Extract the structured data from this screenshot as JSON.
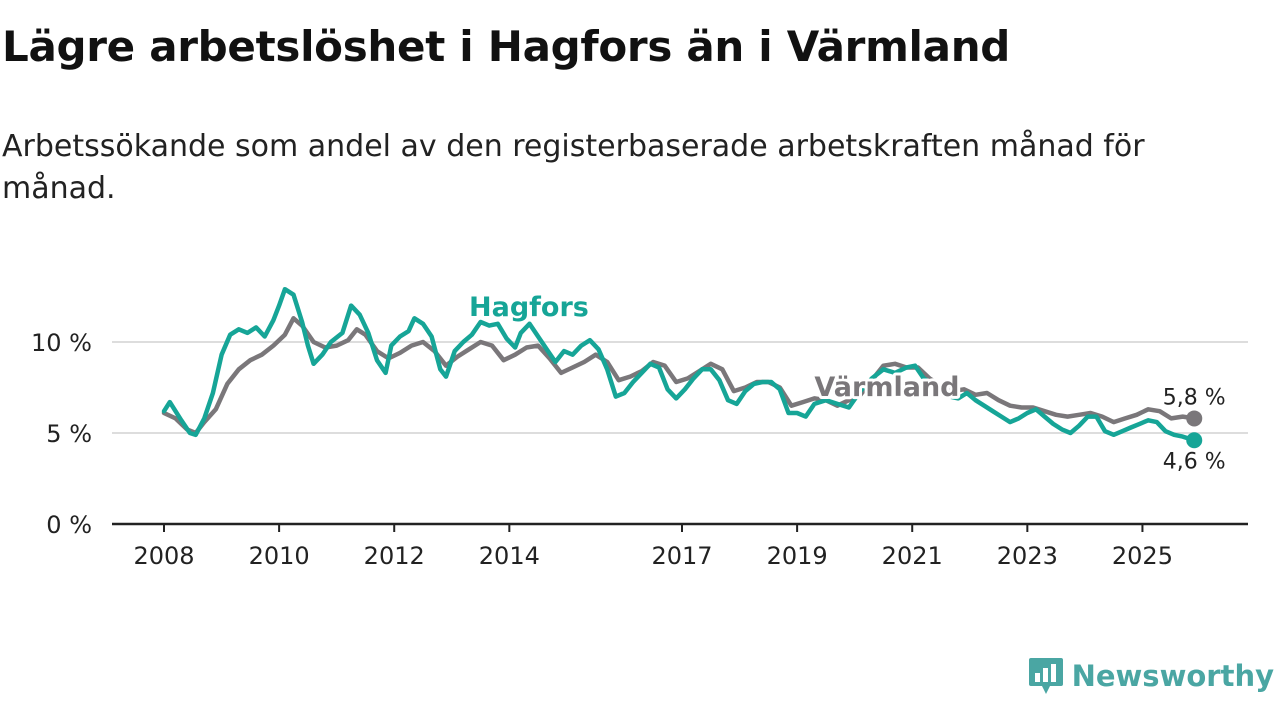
{
  "title": "Lägre arbetslöshet i Hagfors än i Värmland",
  "subtitle": "Arbetssökande som andel av den registerbaserade arbetskraften månad för månad.",
  "brand": {
    "name": "Newsworthy",
    "icon": "newsworthy-logo-icon",
    "color": "#4aa6a3"
  },
  "chart_data": {
    "type": "line",
    "title": "Lägre arbetslöshet i Hagfors än i Värmland",
    "xlabel": "",
    "ylabel": "",
    "xlim": [
      2008.0,
      2026.0
    ],
    "ylim": [
      0,
      12
    ],
    "grid": true,
    "x_ticks": [
      2008,
      2010,
      2012,
      2014,
      2017,
      2019,
      2021,
      2023,
      2025
    ],
    "x_tick_labels": [
      "2008",
      "2010",
      "2012",
      "2014",
      "2017",
      "2019",
      "2021",
      "2023",
      "2025"
    ],
    "y_ticks": [
      0,
      5,
      10
    ],
    "y_tick_labels": [
      "0 %",
      "5 %",
      "10 %"
    ],
    "series": [
      {
        "name": "Värmland",
        "label": "Värmland",
        "color": "#7a777a",
        "end_label": "5,8 %",
        "points": [
          [
            2008.0,
            6.1
          ],
          [
            2008.2,
            5.8
          ],
          [
            2008.4,
            5.2
          ],
          [
            2008.55,
            5.0
          ],
          [
            2008.7,
            5.6
          ],
          [
            2008.9,
            6.3
          ],
          [
            2009.1,
            7.7
          ],
          [
            2009.3,
            8.5
          ],
          [
            2009.5,
            9.0
          ],
          [
            2009.7,
            9.3
          ],
          [
            2009.9,
            9.8
          ],
          [
            2010.1,
            10.4
          ],
          [
            2010.25,
            11.3
          ],
          [
            2010.4,
            10.9
          ],
          [
            2010.6,
            10.0
          ],
          [
            2010.8,
            9.7
          ],
          [
            2011.0,
            9.8
          ],
          [
            2011.2,
            10.1
          ],
          [
            2011.35,
            10.7
          ],
          [
            2011.5,
            10.4
          ],
          [
            2011.7,
            9.5
          ],
          [
            2011.9,
            9.1
          ],
          [
            2012.1,
            9.4
          ],
          [
            2012.3,
            9.8
          ],
          [
            2012.5,
            10.0
          ],
          [
            2012.7,
            9.5
          ],
          [
            2012.9,
            8.7
          ],
          [
            2013.1,
            9.2
          ],
          [
            2013.3,
            9.6
          ],
          [
            2013.5,
            10.0
          ],
          [
            2013.7,
            9.8
          ],
          [
            2013.9,
            9.0
          ],
          [
            2014.1,
            9.3
          ],
          [
            2014.3,
            9.7
          ],
          [
            2014.5,
            9.8
          ],
          [
            2014.7,
            9.1
          ],
          [
            2014.9,
            8.3
          ],
          [
            2015.1,
            8.6
          ],
          [
            2015.3,
            8.9
          ],
          [
            2015.5,
            9.3
          ],
          [
            2015.7,
            8.9
          ],
          [
            2015.9,
            7.9
          ],
          [
            2016.1,
            8.1
          ],
          [
            2016.3,
            8.4
          ],
          [
            2016.5,
            8.9
          ],
          [
            2016.7,
            8.7
          ],
          [
            2016.9,
            7.8
          ],
          [
            2017.1,
            8.0
          ],
          [
            2017.3,
            8.4
          ],
          [
            2017.5,
            8.8
          ],
          [
            2017.7,
            8.5
          ],
          [
            2017.9,
            7.3
          ],
          [
            2018.1,
            7.5
          ],
          [
            2018.3,
            7.8
          ],
          [
            2018.5,
            7.8
          ],
          [
            2018.7,
            7.5
          ],
          [
            2018.9,
            6.5
          ],
          [
            2019.1,
            6.7
          ],
          [
            2019.3,
            6.9
          ],
          [
            2019.5,
            6.8
          ],
          [
            2019.7,
            6.5
          ],
          [
            2019.9,
            6.8
          ],
          [
            2020.1,
            7.1
          ],
          [
            2020.3,
            7.9
          ],
          [
            2020.5,
            8.7
          ],
          [
            2020.7,
            8.8
          ],
          [
            2020.9,
            8.6
          ],
          [
            2021.1,
            8.6
          ],
          [
            2021.3,
            8.0
          ],
          [
            2021.5,
            7.6
          ],
          [
            2021.7,
            7.3
          ],
          [
            2021.9,
            7.4
          ],
          [
            2022.1,
            7.1
          ],
          [
            2022.3,
            7.2
          ],
          [
            2022.5,
            6.8
          ],
          [
            2022.7,
            6.5
          ],
          [
            2022.9,
            6.4
          ],
          [
            2023.1,
            6.4
          ],
          [
            2023.3,
            6.2
          ],
          [
            2023.5,
            6.0
          ],
          [
            2023.7,
            5.9
          ],
          [
            2023.9,
            6.0
          ],
          [
            2024.1,
            6.1
          ],
          [
            2024.3,
            5.9
          ],
          [
            2024.5,
            5.6
          ],
          [
            2024.7,
            5.8
          ],
          [
            2024.9,
            6.0
          ],
          [
            2025.1,
            6.3
          ],
          [
            2025.3,
            6.2
          ],
          [
            2025.5,
            5.8
          ],
          [
            2025.7,
            5.9
          ],
          [
            2025.9,
            5.8
          ]
        ]
      },
      {
        "name": "Hagfors",
        "label": "Hagfors",
        "color": "#16a597",
        "end_label": "4,6 %",
        "points": [
          [
            2008.0,
            6.2
          ],
          [
            2008.1,
            6.7
          ],
          [
            2008.3,
            5.7
          ],
          [
            2008.45,
            5.0
          ],
          [
            2008.55,
            4.9
          ],
          [
            2008.7,
            5.8
          ],
          [
            2008.85,
            7.2
          ],
          [
            2009.0,
            9.3
          ],
          [
            2009.15,
            10.4
          ],
          [
            2009.3,
            10.7
          ],
          [
            2009.45,
            10.5
          ],
          [
            2009.6,
            10.8
          ],
          [
            2009.75,
            10.3
          ],
          [
            2009.9,
            11.2
          ],
          [
            2010.0,
            12.0
          ],
          [
            2010.1,
            12.9
          ],
          [
            2010.25,
            12.6
          ],
          [
            2010.4,
            11.1
          ],
          [
            2010.5,
            9.8
          ],
          [
            2010.6,
            8.8
          ],
          [
            2010.75,
            9.3
          ],
          [
            2010.9,
            10.0
          ],
          [
            2011.1,
            10.5
          ],
          [
            2011.25,
            12.0
          ],
          [
            2011.4,
            11.5
          ],
          [
            2011.55,
            10.5
          ],
          [
            2011.7,
            9.0
          ],
          [
            2011.85,
            8.3
          ],
          [
            2011.95,
            9.8
          ],
          [
            2012.1,
            10.3
          ],
          [
            2012.25,
            10.6
          ],
          [
            2012.35,
            11.3
          ],
          [
            2012.5,
            11.0
          ],
          [
            2012.65,
            10.3
          ],
          [
            2012.8,
            8.5
          ],
          [
            2012.9,
            8.1
          ],
          [
            2013.05,
            9.5
          ],
          [
            2013.2,
            10.0
          ],
          [
            2013.35,
            10.4
          ],
          [
            2013.5,
            11.1
          ],
          [
            2013.65,
            10.9
          ],
          [
            2013.8,
            11.0
          ],
          [
            2013.95,
            10.2
          ],
          [
            2014.1,
            9.7
          ],
          [
            2014.2,
            10.5
          ],
          [
            2014.35,
            11.0
          ],
          [
            2014.5,
            10.3
          ],
          [
            2014.65,
            9.6
          ],
          [
            2014.8,
            8.9
          ],
          [
            2014.95,
            9.5
          ],
          [
            2015.1,
            9.3
          ],
          [
            2015.25,
            9.8
          ],
          [
            2015.4,
            10.1
          ],
          [
            2015.55,
            9.6
          ],
          [
            2015.7,
            8.5
          ],
          [
            2015.85,
            7.0
          ],
          [
            2016.0,
            7.2
          ],
          [
            2016.15,
            7.8
          ],
          [
            2016.3,
            8.3
          ],
          [
            2016.45,
            8.8
          ],
          [
            2016.6,
            8.6
          ],
          [
            2016.75,
            7.4
          ],
          [
            2016.9,
            6.9
          ],
          [
            2017.05,
            7.4
          ],
          [
            2017.2,
            8.0
          ],
          [
            2017.35,
            8.5
          ],
          [
            2017.5,
            8.5
          ],
          [
            2017.65,
            7.9
          ],
          [
            2017.8,
            6.8
          ],
          [
            2017.95,
            6.6
          ],
          [
            2018.1,
            7.3
          ],
          [
            2018.25,
            7.7
          ],
          [
            2018.4,
            7.8
          ],
          [
            2018.55,
            7.8
          ],
          [
            2018.7,
            7.4
          ],
          [
            2018.85,
            6.1
          ],
          [
            2019.0,
            6.1
          ],
          [
            2019.15,
            5.9
          ],
          [
            2019.3,
            6.6
          ],
          [
            2019.5,
            6.8
          ],
          [
            2019.7,
            6.6
          ],
          [
            2019.9,
            6.4
          ],
          [
            2020.1,
            7.3
          ],
          [
            2020.3,
            8.0
          ],
          [
            2020.5,
            8.5
          ],
          [
            2020.7,
            8.3
          ],
          [
            2020.9,
            8.6
          ],
          [
            2021.05,
            8.7
          ],
          [
            2021.2,
            8.0
          ],
          [
            2021.35,
            7.7
          ],
          [
            2021.5,
            7.2
          ],
          [
            2021.65,
            7.0
          ],
          [
            2021.8,
            6.9
          ],
          [
            2021.95,
            7.2
          ],
          [
            2022.1,
            6.8
          ],
          [
            2022.25,
            6.5
          ],
          [
            2022.4,
            6.2
          ],
          [
            2022.55,
            5.9
          ],
          [
            2022.7,
            5.6
          ],
          [
            2022.85,
            5.8
          ],
          [
            2023.0,
            6.1
          ],
          [
            2023.15,
            6.3
          ],
          [
            2023.3,
            5.9
          ],
          [
            2023.45,
            5.5
          ],
          [
            2023.6,
            5.2
          ],
          [
            2023.75,
            5.0
          ],
          [
            2023.9,
            5.4
          ],
          [
            2024.05,
            5.9
          ],
          [
            2024.2,
            5.9
          ],
          [
            2024.35,
            5.1
          ],
          [
            2024.5,
            4.9
          ],
          [
            2024.65,
            5.1
          ],
          [
            2024.8,
            5.3
          ],
          [
            2024.95,
            5.5
          ],
          [
            2025.1,
            5.7
          ],
          [
            2025.25,
            5.6
          ],
          [
            2025.4,
            5.1
          ],
          [
            2025.55,
            4.9
          ],
          [
            2025.7,
            4.8
          ],
          [
            2025.9,
            4.6
          ]
        ]
      }
    ]
  }
}
